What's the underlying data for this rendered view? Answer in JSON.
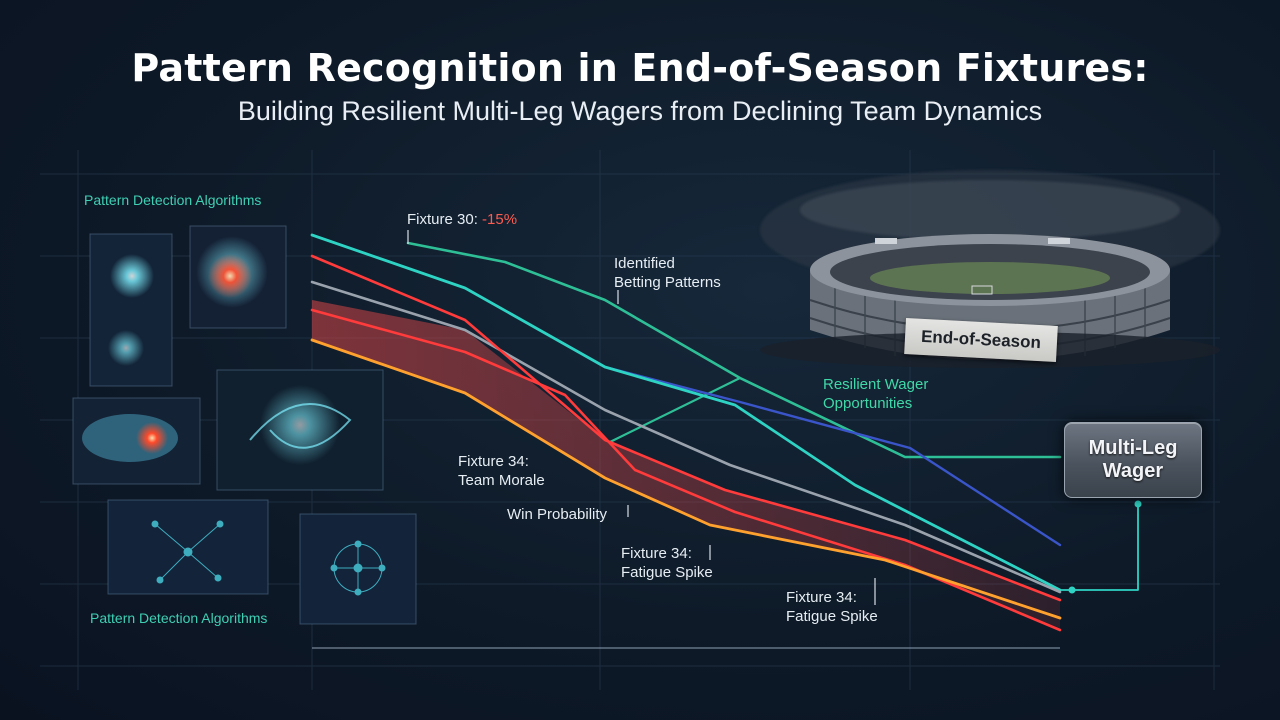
{
  "header": {
    "title": "Pattern Recognition in End-of-Season Fixtures:",
    "subtitle": "Building Resilient Multi-Leg Wagers from Declining Team Dynamics"
  },
  "panel": {
    "top_label": "Pattern Detection Algorithms",
    "bottom_label": "Pattern Detection Algorithms"
  },
  "annotations": {
    "fixture30_prefix": "Fixture 30: ",
    "fixture30_value": "-15%",
    "identified_line1": "Identified",
    "identified_line2": "Betting Patterns",
    "morale_line1": "Fixture 34:",
    "morale_line2": "Team Morale",
    "win_probability": "Win Probability",
    "fatigue1_line1": "Fixture 34:",
    "fatigue1_line2": "Fatigue Spike",
    "fatigue2_line1": "Fixture 34:",
    "fatigue2_line2": "Fatigue Spike",
    "resilient_line1": "Resilient Wager",
    "resilient_line2": "Opportunities"
  },
  "stadium": {
    "banner": "End-of-Season"
  },
  "wager_box": {
    "line1": "Multi-Leg",
    "line2": "Wager"
  },
  "colors": {
    "teal": "#2fd3c4",
    "green": "#2fbf96",
    "blue": "#3a55c9",
    "gray": "#9aa3ad",
    "red": "#ff3b3b",
    "orange": "#ffa12e",
    "band": "#c23a3a"
  }
}
